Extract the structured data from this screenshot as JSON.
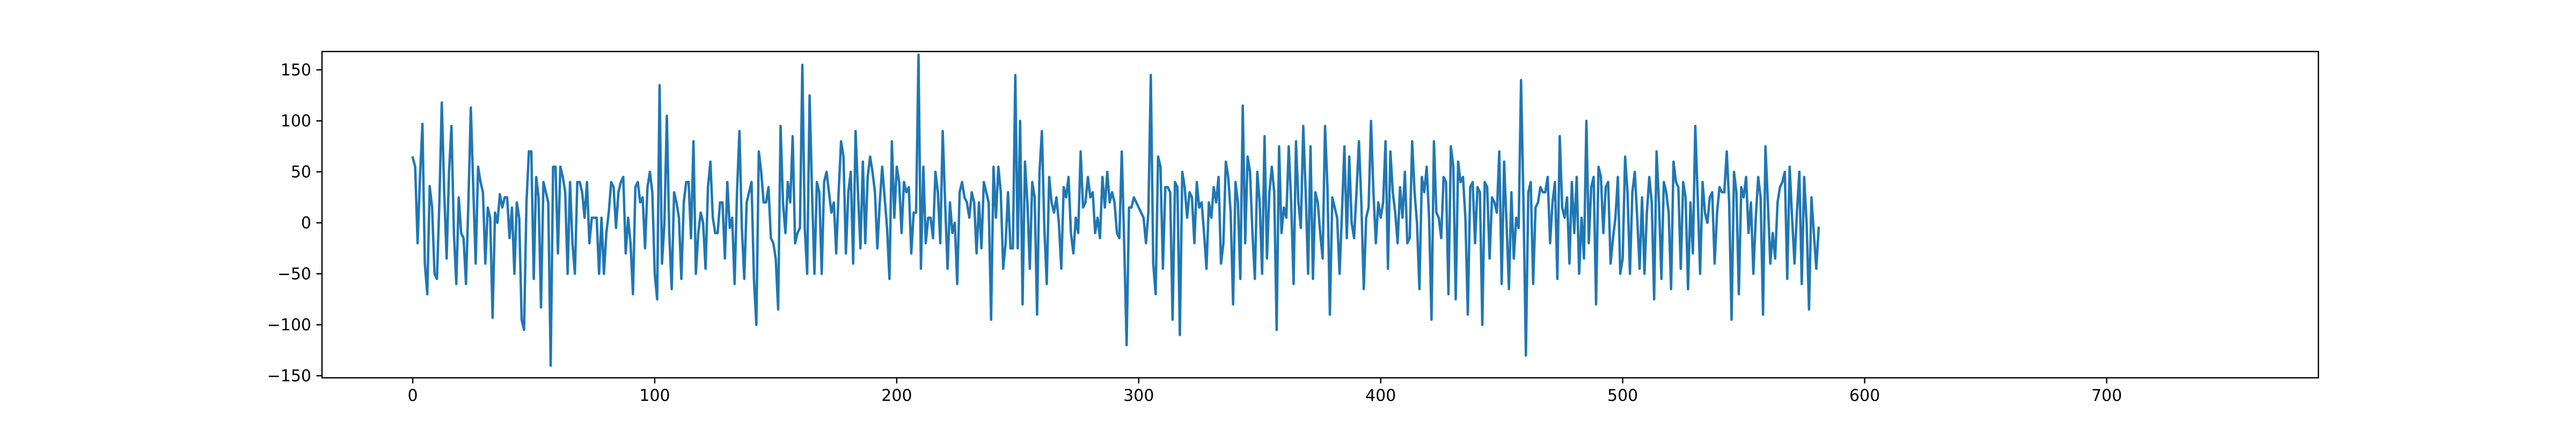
{
  "chart_data": {
    "type": "line",
    "title": "",
    "xlabel": "",
    "ylabel": "",
    "xlim": [
      -37.5,
      787.5
    ],
    "ylim": [
      -152,
      168
    ],
    "xticks": [
      0,
      100,
      200,
      300,
      400,
      500,
      600,
      700
    ],
    "xtick_labels": [
      "0",
      "100",
      "200",
      "300",
      "400",
      "500",
      "600",
      "700"
    ],
    "yticks": [
      -150,
      -100,
      -50,
      0,
      50,
      100,
      150
    ],
    "ytick_labels": [
      "−150",
      "−100",
      "−50",
      "0",
      "50",
      "100",
      "150"
    ],
    "grid": false,
    "legend": "none",
    "line_color": "#1f77b4",
    "series": [
      {
        "x_start": 0,
        "x_step": 1,
        "values": [
          64,
          55,
          -20,
          45,
          97,
          -40,
          -70,
          36,
          15,
          -50,
          -55,
          20,
          118,
          30,
          -35,
          50,
          95,
          -10,
          -60,
          25,
          -10,
          -15,
          -60,
          20,
          113,
          35,
          -40,
          55,
          40,
          30,
          -40,
          15,
          5,
          -93,
          10,
          0,
          28,
          15,
          25,
          25,
          -15,
          15,
          -50,
          20,
          5,
          -95,
          -105,
          20,
          70,
          70,
          -55,
          45,
          25,
          -83,
          40,
          30,
          20,
          -140,
          55,
          55,
          -30,
          55,
          45,
          30,
          -50,
          40,
          -20,
          -50,
          40,
          40,
          30,
          5,
          40,
          -20,
          5,
          5,
          5,
          -50,
          5,
          -50,
          -10,
          10,
          40,
          35,
          -5,
          30,
          40,
          45,
          -30,
          5,
          -20,
          -70,
          35,
          40,
          20,
          25,
          -25,
          35,
          50,
          30,
          -50,
          -75,
          135,
          -40,
          0,
          105,
          -10,
          -65,
          30,
          20,
          5,
          -55,
          20,
          40,
          40,
          -15,
          80,
          -50,
          -10,
          10,
          0,
          -45,
          35,
          60,
          5,
          -10,
          -10,
          20,
          20,
          -35,
          40,
          -5,
          5,
          -60,
          30,
          90,
          -5,
          -55,
          20,
          30,
          40,
          -55,
          -100,
          70,
          50,
          20,
          20,
          35,
          -15,
          -20,
          -35,
          -85,
          95,
          20,
          -10,
          40,
          20,
          85,
          -20,
          -10,
          -5,
          155,
          -5,
          -50,
          125,
          30,
          -50,
          40,
          30,
          -50,
          40,
          50,
          30,
          10,
          20,
          -30,
          30,
          80,
          65,
          -30,
          30,
          50,
          -40,
          90,
          30,
          -25,
          60,
          -20,
          45,
          65,
          50,
          30,
          -25,
          20,
          55,
          25,
          -5,
          -55,
          80,
          5,
          55,
          40,
          -10,
          40,
          30,
          35,
          -30,
          10,
          10,
          165,
          -45,
          55,
          -20,
          5,
          5,
          -15,
          50,
          30,
          -20,
          90,
          20,
          -45,
          20,
          -10,
          0,
          -60,
          30,
          40,
          25,
          20,
          5,
          30,
          20,
          -30,
          20,
          -25,
          40,
          30,
          20,
          -95,
          55,
          5,
          55,
          30,
          -45,
          -20,
          30,
          -25,
          -25,
          145,
          -25,
          100,
          -80,
          60,
          20,
          -45,
          40,
          25,
          -90,
          50,
          90,
          -5,
          -60,
          45,
          20,
          10,
          25,
          0,
          -45,
          35,
          25,
          45,
          -10,
          -30,
          5,
          -10,
          70,
          15,
          20,
          45,
          25,
          30,
          -10,
          5,
          -15,
          45,
          15,
          50,
          20,
          30,
          20,
          -10,
          -15,
          70,
          -20,
          -120,
          15,
          15,
          25,
          20,
          15,
          10,
          5,
          -20,
          10,
          145,
          -40,
          -70,
          65,
          55,
          -45,
          35,
          35,
          30,
          -95,
          40,
          35,
          -110,
          50,
          35,
          5,
          30,
          25,
          -20,
          40,
          15,
          20,
          -10,
          -45,
          20,
          5,
          35,
          20,
          45,
          -40,
          -20,
          60,
          45,
          10,
          -80,
          40,
          20,
          -55,
          115,
          -20,
          65,
          50,
          -10,
          -55,
          50,
          20,
          -50,
          85,
          -35,
          30,
          55,
          30,
          -105,
          75,
          -10,
          15,
          5,
          75,
          20,
          -60,
          80,
          20,
          -5,
          95,
          30,
          -50,
          75,
          -55,
          30,
          20,
          -10,
          -35,
          95,
          35,
          -90,
          25,
          15,
          5,
          -50,
          10,
          75,
          -15,
          65,
          0,
          -15,
          30,
          80,
          20,
          -65,
          5,
          15,
          100,
          30,
          -20,
          20,
          5,
          20,
          80,
          -45,
          70,
          30,
          10,
          -20,
          35,
          5,
          50,
          -20,
          -15,
          80,
          30,
          0,
          -65,
          45,
          30,
          55,
          5,
          -95,
          80,
          10,
          5,
          -15,
          45,
          40,
          -70,
          75,
          55,
          -75,
          60,
          40,
          45,
          5,
          -90,
          35,
          40,
          -20,
          35,
          30,
          -100,
          40,
          35,
          -35,
          25,
          20,
          10,
          70,
          -60,
          60,
          0,
          -65,
          30,
          -35,
          5,
          -5,
          140,
          20,
          -130,
          30,
          40,
          -60,
          15,
          20,
          35,
          30,
          30,
          45,
          -20,
          20,
          40,
          -55,
          85,
          15,
          5,
          25,
          -40,
          40,
          -10,
          45,
          -50,
          5,
          -35,
          100,
          -20,
          35,
          45,
          -80,
          55,
          45,
          -10,
          35,
          40,
          -40,
          -15,
          5,
          45,
          -50,
          -35,
          65,
          30,
          -50,
          30,
          50,
          5,
          -45,
          25,
          -50,
          10,
          45,
          20,
          -75,
          70,
          20,
          -55,
          40,
          30,
          10,
          -65,
          60,
          40,
          35,
          -45,
          40,
          25,
          -65,
          20,
          -30,
          95,
          25,
          -50,
          40,
          10,
          0,
          25,
          30,
          -40,
          10,
          35,
          30,
          30,
          70,
          20,
          -95,
          50,
          30,
          -70,
          35,
          25,
          45,
          -10,
          20,
          -50,
          5,
          45,
          25,
          -90,
          75,
          20,
          -40,
          -10,
          -35,
          20,
          35,
          40,
          50,
          -55,
          55,
          5,
          -40,
          10,
          50,
          -60,
          45,
          0,
          -85,
          25,
          -10,
          -45,
          -5
        ]
      }
    ]
  }
}
